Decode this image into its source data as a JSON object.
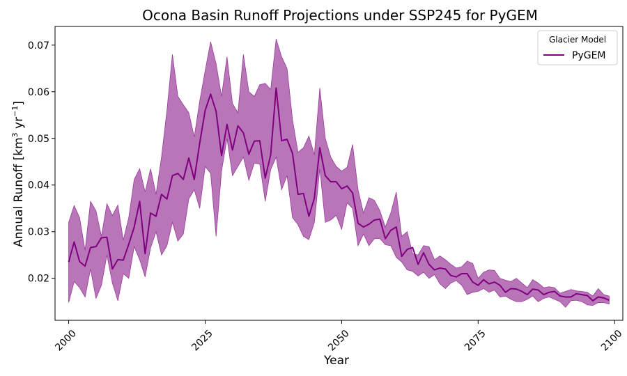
{
  "chart_data": {
    "type": "line",
    "title": "Ocona Basin Runoff Projections under SSP245 for PyGEM",
    "xlabel": "Year",
    "ylabel": "Annual Runoff [km³ yr⁻¹]",
    "ylabel_parts": {
      "main": "Annual Runoff [km",
      "sup1": "3",
      "mid": " yr",
      "sup2": "−1",
      "end": "]"
    },
    "xlim": [
      1997.5,
      2101.5
    ],
    "ylim": [
      0.011,
      0.074
    ],
    "xticks": [
      2000,
      2025,
      2050,
      2075,
      2100
    ],
    "yticks": [
      0.02,
      0.03,
      0.04,
      0.05,
      0.06,
      0.07
    ],
    "ytick_labels": [
      "0.02",
      "0.03",
      "0.04",
      "0.05",
      "0.06",
      "0.07"
    ],
    "grid": false,
    "legend": {
      "title": "Glacier Model",
      "position": "top-right"
    },
    "colors": {
      "line": "#800080",
      "band": "#B875B8",
      "band_edge": "#9a3a9a"
    },
    "series": [
      {
        "name": "PyGEM",
        "x": [
          2000,
          2001,
          2002,
          2003,
          2004,
          2005,
          2006,
          2007,
          2008,
          2009,
          2010,
          2011,
          2012,
          2013,
          2014,
          2015,
          2016,
          2017,
          2018,
          2019,
          2020,
          2021,
          2022,
          2023,
          2024,
          2025,
          2026,
          2027,
          2028,
          2029,
          2030,
          2031,
          2032,
          2033,
          2034,
          2035,
          2036,
          2037,
          2038,
          2039,
          2040,
          2041,
          2042,
          2043,
          2044,
          2045,
          2046,
          2047,
          2048,
          2049,
          2050,
          2051,
          2052,
          2053,
          2054,
          2055,
          2056,
          2057,
          2058,
          2059,
          2060,
          2061,
          2062,
          2063,
          2064,
          2065,
          2066,
          2067,
          2068,
          2069,
          2070,
          2071,
          2072,
          2073,
          2074,
          2075,
          2076,
          2077,
          2078,
          2079,
          2080,
          2081,
          2082,
          2083,
          2084,
          2085,
          2086,
          2087,
          2088,
          2089,
          2090,
          2091,
          2092,
          2093,
          2094,
          2095,
          2096,
          2097,
          2098,
          2099
        ],
        "mean": [
          0.0235,
          0.0278,
          0.0236,
          0.0226,
          0.0266,
          0.0268,
          0.0287,
          0.0288,
          0.022,
          0.024,
          0.0239,
          0.0273,
          0.031,
          0.0365,
          0.0253,
          0.034,
          0.0333,
          0.038,
          0.037,
          0.042,
          0.0425,
          0.0412,
          0.0458,
          0.0412,
          0.049,
          0.056,
          0.0595,
          0.0558,
          0.0463,
          0.053,
          0.0475,
          0.0527,
          0.0512,
          0.0466,
          0.0494,
          0.0495,
          0.0415,
          0.0465,
          0.0608,
          0.0495,
          0.0498,
          0.0468,
          0.038,
          0.0382,
          0.0333,
          0.0372,
          0.048,
          0.042,
          0.0407,
          0.0407,
          0.0392,
          0.0398,
          0.0383,
          0.0318,
          0.031,
          0.0316,
          0.0325,
          0.0327,
          0.0285,
          0.0303,
          0.031,
          0.0247,
          0.0262,
          0.0266,
          0.023,
          0.0255,
          0.023,
          0.0218,
          0.0222,
          0.022,
          0.0206,
          0.0203,
          0.021,
          0.021,
          0.0192,
          0.0185,
          0.0197,
          0.0188,
          0.0192,
          0.0185,
          0.017,
          0.0178,
          0.0177,
          0.0172,
          0.0165,
          0.0177,
          0.0175,
          0.0165,
          0.017,
          0.0172,
          0.0162,
          0.016,
          0.016,
          0.0167,
          0.0165,
          0.0163,
          0.0152,
          0.016,
          0.0158,
          0.0153
        ],
        "upper": [
          0.032,
          0.0356,
          0.033,
          0.026,
          0.0365,
          0.0345,
          0.029,
          0.036,
          0.0335,
          0.0357,
          0.0282,
          0.033,
          0.0412,
          0.0435,
          0.0385,
          0.0435,
          0.038,
          0.046,
          0.056,
          0.068,
          0.059,
          0.0572,
          0.0555,
          0.0503,
          0.058,
          0.0645,
          0.0707,
          0.066,
          0.059,
          0.0675,
          0.0575,
          0.0555,
          0.068,
          0.06,
          0.059,
          0.0615,
          0.0618,
          0.0605,
          0.0713,
          0.0675,
          0.065,
          0.054,
          0.047,
          0.048,
          0.0505,
          0.0465,
          0.0608,
          0.05,
          0.046,
          0.044,
          0.043,
          0.0438,
          0.0487,
          0.039,
          0.034,
          0.0373,
          0.0367,
          0.0345,
          0.031,
          0.034,
          0.0385,
          0.029,
          0.03,
          0.0253,
          0.025,
          0.027,
          0.0268,
          0.024,
          0.0248,
          0.024,
          0.023,
          0.0222,
          0.0225,
          0.0237,
          0.0232,
          0.02,
          0.0213,
          0.0218,
          0.0217,
          0.02,
          0.0196,
          0.0193,
          0.02,
          0.019,
          0.018,
          0.0197,
          0.019,
          0.018,
          0.0182,
          0.018,
          0.0168,
          0.0172,
          0.0176,
          0.0173,
          0.0172,
          0.017,
          0.0162,
          0.0178,
          0.0165,
          0.0162
        ],
        "lower": [
          0.0148,
          0.0193,
          0.018,
          0.016,
          0.022,
          0.0157,
          0.0185,
          0.025,
          0.019,
          0.0152,
          0.021,
          0.02,
          0.0268,
          0.024,
          0.0203,
          0.0265,
          0.03,
          0.025,
          0.027,
          0.032,
          0.028,
          0.0295,
          0.037,
          0.039,
          0.035,
          0.044,
          0.0425,
          0.029,
          0.043,
          0.05,
          0.042,
          0.044,
          0.046,
          0.041,
          0.0447,
          0.0445,
          0.0365,
          0.0433,
          0.046,
          0.039,
          0.042,
          0.033,
          0.0315,
          0.029,
          0.0283,
          0.032,
          0.0435,
          0.032,
          0.0325,
          0.0335,
          0.0305,
          0.0362,
          0.035,
          0.027,
          0.0295,
          0.027,
          0.0285,
          0.0285,
          0.0272,
          0.027,
          0.0245,
          0.0235,
          0.0218,
          0.0215,
          0.0205,
          0.0213,
          0.02,
          0.0208,
          0.0188,
          0.0178,
          0.019,
          0.0195,
          0.0185,
          0.0165,
          0.017,
          0.0172,
          0.0178,
          0.017,
          0.0175,
          0.016,
          0.0162,
          0.0155,
          0.015,
          0.015,
          0.0155,
          0.0162,
          0.015,
          0.0157,
          0.016,
          0.0155,
          0.015,
          0.0138,
          0.0152,
          0.0153,
          0.015,
          0.0143,
          0.0142,
          0.0148,
          0.0148,
          0.0145
        ]
      }
    ]
  }
}
